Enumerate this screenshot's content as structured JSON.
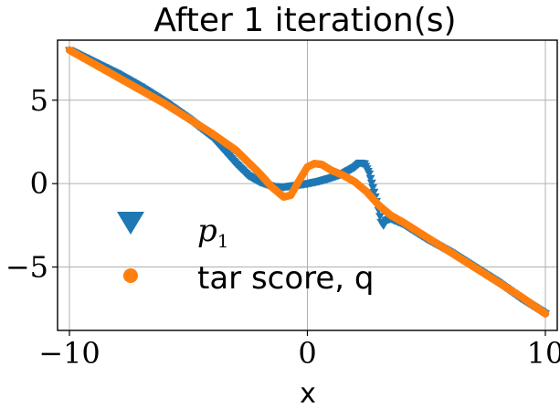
{
  "chart_data": {
    "type": "scatter",
    "title": "After 1 iteration(s)",
    "xlabel": "x",
    "ylabel": "",
    "xlim": [
      -10.5,
      10.5
    ],
    "ylim": [
      -8.8,
      8.6
    ],
    "xticks": [
      -10,
      0,
      10
    ],
    "yticks": [
      -5,
      0,
      5
    ],
    "xtick_labels": [
      "−10",
      "0",
      "10"
    ],
    "ytick_labels": [
      "−5",
      "0",
      "5"
    ],
    "grid": true,
    "legend": "lower-left",
    "series": [
      {
        "name_main": "p",
        "name_sub": "1",
        "marker": "triangle-down",
        "color": "#1f77b4",
        "x": [
          -10,
          -9,
          -8,
          -7,
          -6,
          -5,
          -4,
          -3,
          -2.5,
          -2,
          -1.5,
          -1,
          -0.5,
          0,
          0.5,
          1,
          1.5,
          2,
          2.2,
          2.4,
          2.6,
          2.8,
          3,
          3.1,
          3.2,
          3.3,
          3.5,
          4,
          5,
          6,
          7,
          8,
          9,
          10
        ],
        "y": [
          8.0,
          7.3,
          6.6,
          5.8,
          4.9,
          3.9,
          2.8,
          1.2,
          0.5,
          0.1,
          -0.15,
          -0.2,
          -0.1,
          0.0,
          0.15,
          0.35,
          0.6,
          1.0,
          1.25,
          1.2,
          0.6,
          -0.5,
          -1.6,
          -2.3,
          -2.5,
          -2.2,
          -2.1,
          -2.4,
          -3.3,
          -4.1,
          -5.0,
          -5.9,
          -6.9,
          -7.8
        ]
      },
      {
        "name": "tar score, q",
        "marker": "circle",
        "color": "#ff7f0e",
        "x": [
          -10,
          -9,
          -8,
          -7,
          -6,
          -5,
          -4,
          -3,
          -2,
          -1.5,
          -1,
          -0.7,
          -0.3,
          0,
          0.3,
          0.6,
          1,
          1.5,
          2,
          2.5,
          3,
          3.5,
          4,
          5,
          6,
          7,
          8,
          9,
          10
        ],
        "y": [
          8.0,
          7.2,
          6.4,
          5.6,
          4.8,
          3.9,
          3.0,
          2.0,
          0.6,
          -0.2,
          -0.8,
          -0.7,
          0.3,
          1.0,
          1.2,
          1.15,
          0.8,
          0.5,
          0.1,
          -0.5,
          -1.3,
          -1.9,
          -2.3,
          -3.2,
          -4.1,
          -5.0,
          -5.9,
          -6.8,
          -7.8
        ]
      }
    ]
  }
}
